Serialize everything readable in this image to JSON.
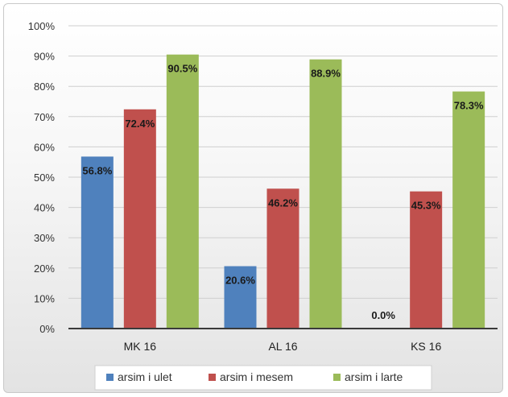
{
  "chart_data": {
    "type": "bar",
    "title": "",
    "xlabel": "",
    "ylabel": "",
    "categories": [
      "MK 16",
      "AL 16",
      "KS 16"
    ],
    "ylim": [
      0,
      100
    ],
    "y_ticks": [
      "0%",
      "10%",
      "20%",
      "30%",
      "40%",
      "50%",
      "60%",
      "70%",
      "80%",
      "90%",
      "100%"
    ],
    "grid": true,
    "legend_position": "bottom",
    "series": [
      {
        "name": "arsim i ulet",
        "color": "#4f81bd",
        "values": [
          56.8,
          20.6,
          0.0
        ],
        "labels": [
          "56.8%",
          "20.6%",
          "0.0%"
        ]
      },
      {
        "name": "arsim i mesem",
        "color": "#c0504d",
        "values": [
          72.4,
          46.2,
          45.3
        ],
        "labels": [
          "72.4%",
          "46.2%",
          "45.3%"
        ]
      },
      {
        "name": "arsim i larte",
        "color": "#9bbb59",
        "values": [
          90.5,
          88.9,
          78.3
        ],
        "labels": [
          "90.5%",
          "88.9%",
          "78.3%"
        ]
      }
    ]
  }
}
